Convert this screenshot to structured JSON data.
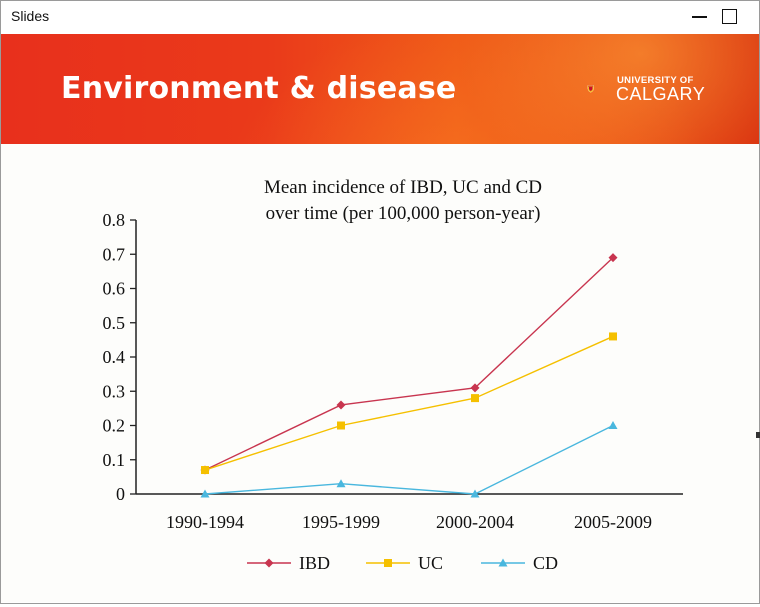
{
  "window": {
    "title": "Slides"
  },
  "banner": {
    "title": "Environment & disease",
    "logo_line1": "UNIVERSITY OF",
    "logo_line2": "CALGARY"
  },
  "colors": {
    "ibd": "#c8354f",
    "uc": "#f5c000",
    "cd": "#49b7de",
    "banner_red": "#e8301c",
    "banner_orange": "#ef5a18"
  },
  "chart_data": {
    "type": "line",
    "title_lines": [
      "Mean incidence of IBD, UC and CD",
      "over time (per 100,000 person-year)"
    ],
    "categories": [
      "1990-1994",
      "1995-1999",
      "2000-2004",
      "2005-2009"
    ],
    "series": [
      {
        "name": "IBD",
        "marker": "diamond",
        "values": [
          0.07,
          0.26,
          0.31,
          0.69
        ]
      },
      {
        "name": "UC",
        "marker": "square",
        "values": [
          0.07,
          0.2,
          0.28,
          0.46
        ]
      },
      {
        "name": "CD",
        "marker": "triangle",
        "values": [
          0.0,
          0.03,
          0.0,
          0.2
        ]
      }
    ],
    "ylim": [
      0,
      0.8
    ],
    "yticks": [
      "0",
      "0.1",
      "0.2",
      "0.3",
      "0.4",
      "0.5",
      "0.6",
      "0.7",
      "0.8"
    ],
    "xlabel": "",
    "ylabel": "",
    "grid": false,
    "legend": "bottom"
  }
}
